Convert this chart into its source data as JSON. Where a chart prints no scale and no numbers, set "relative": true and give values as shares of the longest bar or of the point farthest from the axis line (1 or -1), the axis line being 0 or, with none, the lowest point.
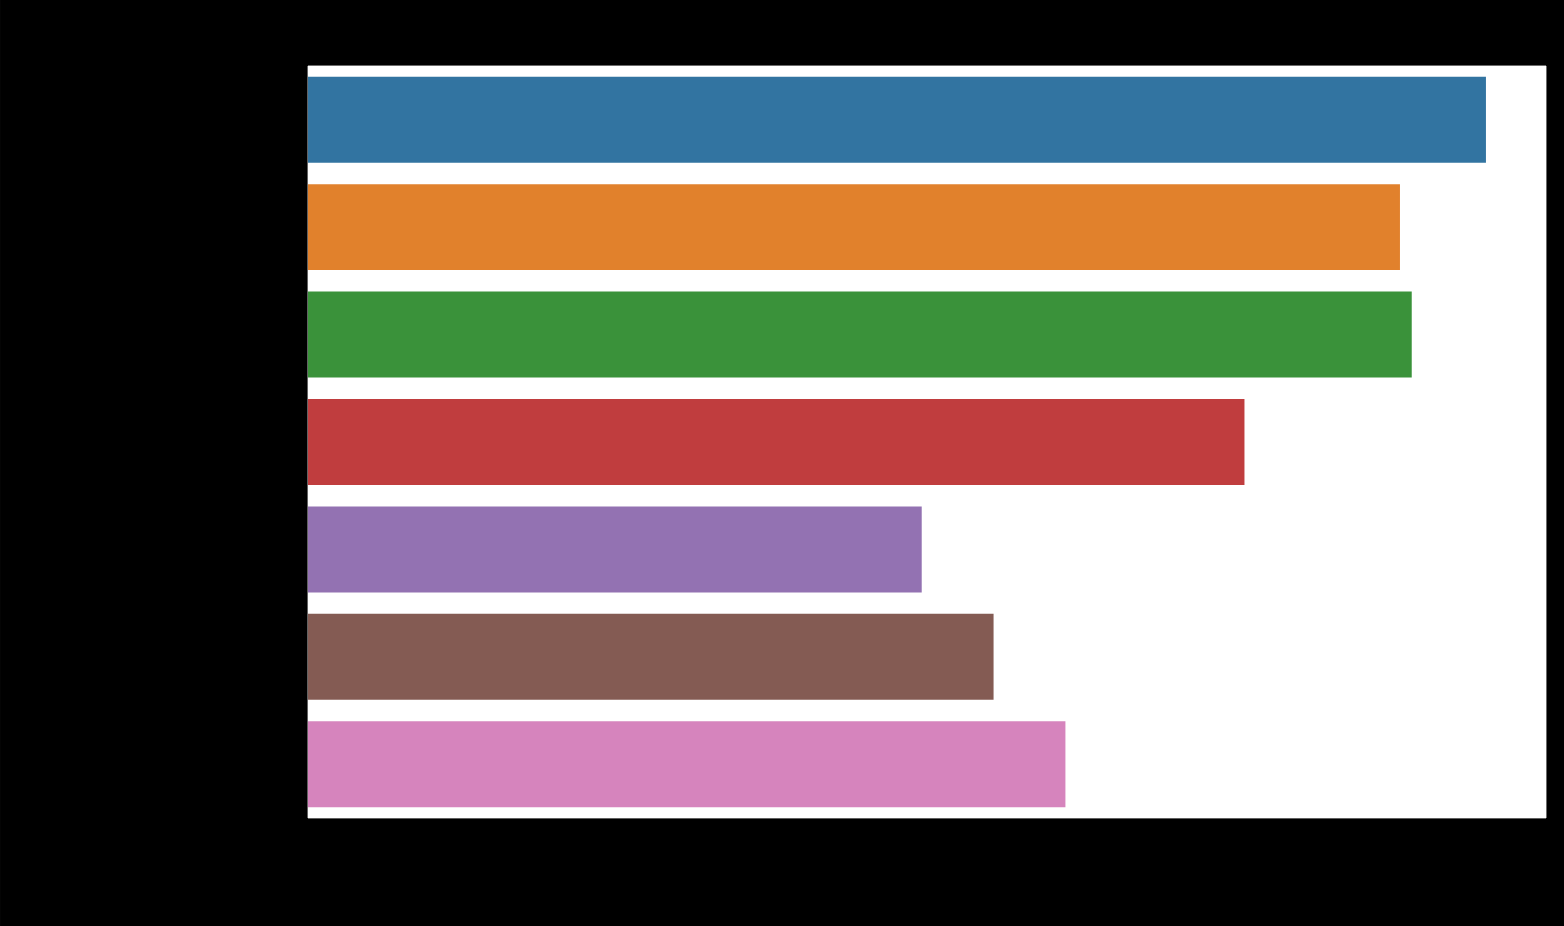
{
  "chart_data": {
    "type": "bar",
    "orientation": "horizontal",
    "relative": true,
    "categories": [
      null,
      null,
      null,
      null,
      null,
      null,
      null
    ],
    "values": [
      1,
      0.927,
      0.937,
      0.795,
      0.521,
      0.582,
      0.643
    ],
    "colors": [
      "#3274a1",
      "#e1812c",
      "#3a923a",
      "#c03d3e",
      "#9372b2",
      "#845b53",
      "#d684bd"
    ]
  }
}
